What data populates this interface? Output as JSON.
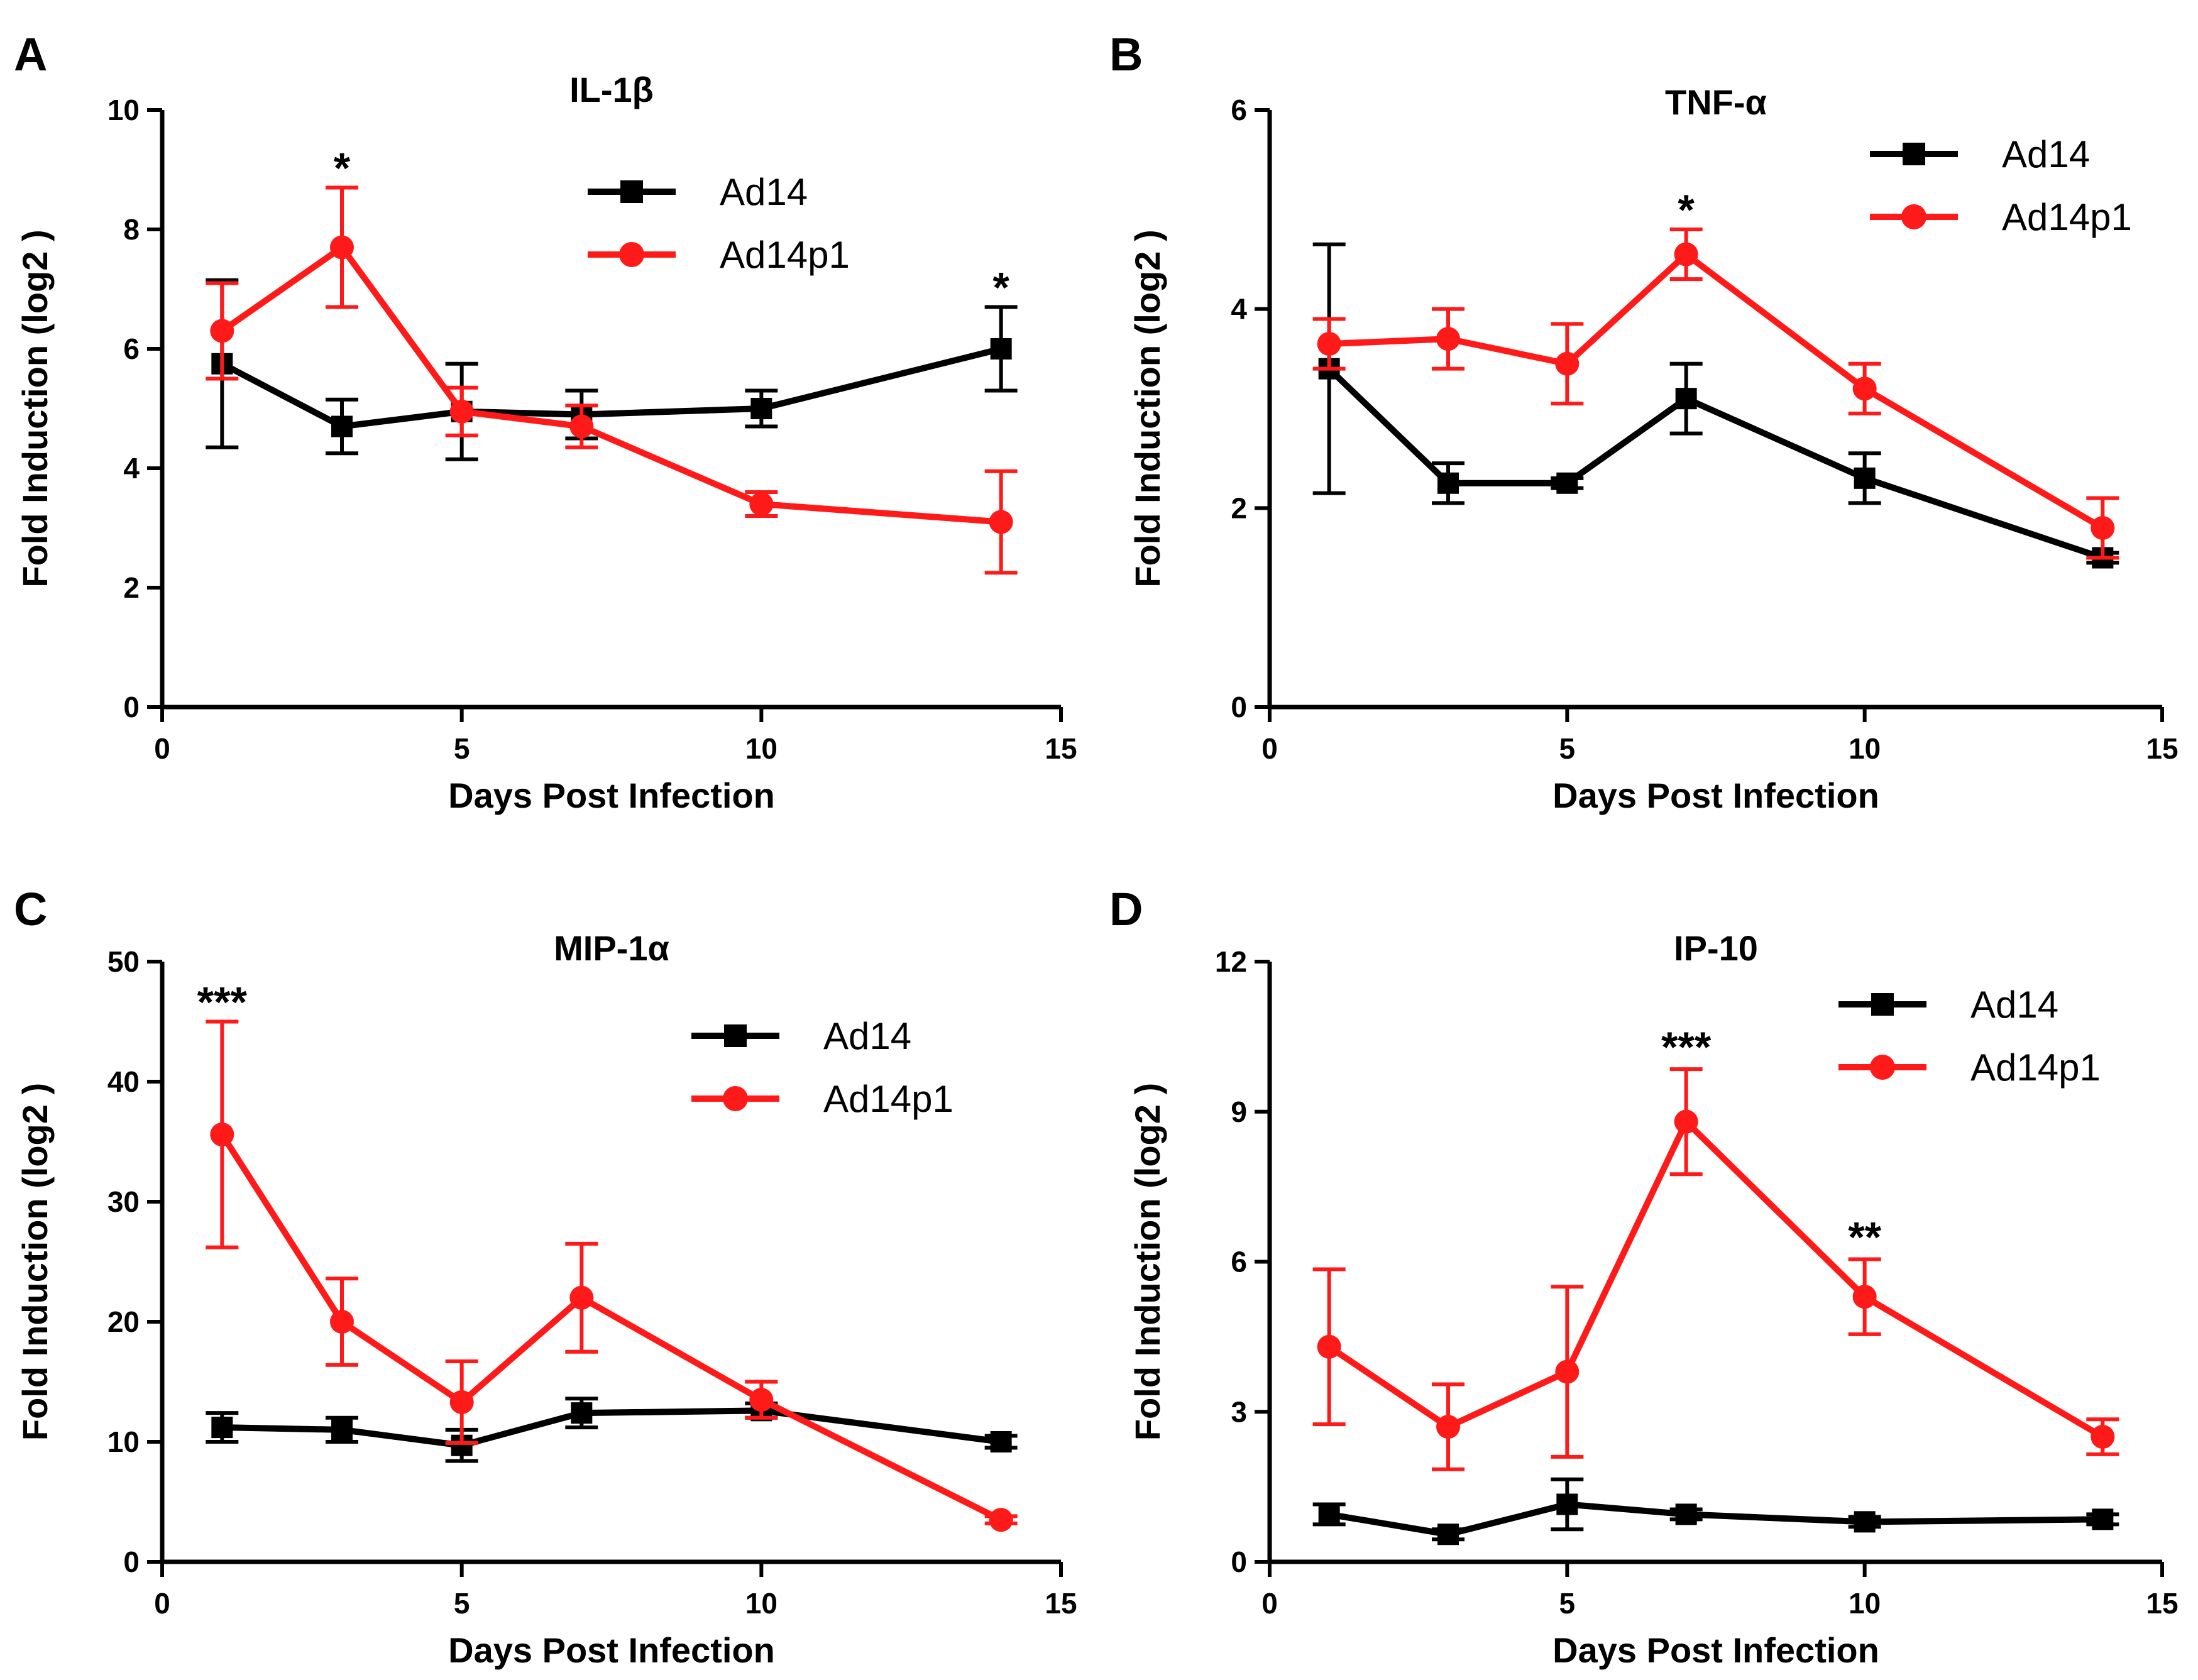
{
  "colors": {
    "Ad14": "#000000",
    "Ad14p1": "#ff1a1a"
  },
  "chart_data": [
    {
      "panel": "A",
      "type": "line",
      "title": "IL-1β",
      "xlabel": "Days Post Infection",
      "ylabel": "Fold Induction (log2 )",
      "xlim": [
        0,
        15
      ],
      "ylim": [
        0,
        10
      ],
      "xticks": [
        0,
        5,
        10,
        15
      ],
      "yticks": [
        0,
        2,
        4,
        6,
        8,
        10
      ],
      "legend_position": "top-right",
      "series": [
        {
          "name": "Ad14",
          "marker": "square",
          "x": [
            1,
            3,
            5,
            7,
            10,
            14
          ],
          "values": [
            5.75,
            4.7,
            4.95,
            4.9,
            5.0,
            6.0
          ],
          "err": [
            1.4,
            0.45,
            0.8,
            0.4,
            0.3,
            0.7
          ]
        },
        {
          "name": "Ad14p1",
          "marker": "circle",
          "x": [
            1,
            3,
            5,
            7,
            10,
            14
          ],
          "values": [
            6.3,
            7.7,
            4.95,
            4.7,
            3.4,
            3.1
          ],
          "err": [
            0.8,
            1.0,
            0.4,
            0.35,
            0.2,
            0.85
          ]
        }
      ],
      "annotations": [
        {
          "x": 3,
          "y": 8.7,
          "text": "*"
        },
        {
          "x": 14,
          "y": 6.7,
          "text": "*"
        }
      ]
    },
    {
      "panel": "B",
      "type": "line",
      "title": "TNF-α",
      "xlabel": "Days Post Infection",
      "ylabel": "Fold Induction (log2 )",
      "xlim": [
        0,
        15
      ],
      "ylim": [
        0,
        6
      ],
      "xticks": [
        0,
        5,
        10,
        15
      ],
      "yticks": [
        0,
        2,
        4,
        6
      ],
      "legend_position": "top-right",
      "series": [
        {
          "name": "Ad14",
          "marker": "square",
          "x": [
            1,
            3,
            5,
            7,
            10,
            14
          ],
          "values": [
            3.4,
            2.25,
            2.25,
            3.1,
            2.3,
            1.5
          ],
          "err": [
            1.25,
            0.2,
            0.05,
            0.35,
            0.25,
            0.05
          ]
        },
        {
          "name": "Ad14p1",
          "marker": "circle",
          "x": [
            1,
            3,
            5,
            7,
            10,
            14
          ],
          "values": [
            3.65,
            3.7,
            3.45,
            4.55,
            3.2,
            1.8
          ],
          "err": [
            0.25,
            0.3,
            0.4,
            0.25,
            0.25,
            0.3
          ]
        }
      ],
      "annotations": [
        {
          "x": 7,
          "y": 4.8,
          "text": "*"
        }
      ]
    },
    {
      "panel": "C",
      "type": "line",
      "title": "MIP-1α",
      "xlabel": "Days Post Infection",
      "ylabel": "Fold Induction (log2 )",
      "xlim": [
        0,
        15
      ],
      "ylim": [
        0,
        50
      ],
      "xticks": [
        0,
        5,
        10,
        15
      ],
      "yticks": [
        0,
        10,
        20,
        30,
        40,
        50
      ],
      "legend_position": "top-right",
      "series": [
        {
          "name": "Ad14",
          "marker": "square",
          "x": [
            1,
            3,
            5,
            7,
            10,
            14
          ],
          "values": [
            11.2,
            11.0,
            9.7,
            12.4,
            12.6,
            10.0
          ],
          "err": [
            1.2,
            1.0,
            1.3,
            1.2,
            0.6,
            0.5
          ]
        },
        {
          "name": "Ad14p1",
          "marker": "circle",
          "x": [
            1,
            3,
            5,
            7,
            10,
            14
          ],
          "values": [
            35.6,
            20.0,
            13.3,
            22.0,
            13.5,
            3.5
          ],
          "err": [
            9.4,
            3.6,
            3.4,
            4.5,
            1.5,
            0.3
          ]
        }
      ],
      "annotations": [
        {
          "x": 1,
          "y": 45,
          "text": "***"
        }
      ]
    },
    {
      "panel": "D",
      "type": "line",
      "title": "IP-10",
      "xlabel": "Days Post Infection",
      "ylabel": "Fold Induction (log2 )",
      "xlim": [
        0,
        15
      ],
      "ylim": [
        0,
        12
      ],
      "xticks": [
        0,
        5,
        10,
        15
      ],
      "yticks": [
        0,
        3,
        6,
        9,
        12
      ],
      "legend_position": "top-right",
      "series": [
        {
          "name": "Ad14",
          "marker": "square",
          "x": [
            1,
            3,
            5,
            7,
            10,
            14
          ],
          "values": [
            0.95,
            0.55,
            1.15,
            0.95,
            0.8,
            0.85
          ],
          "err": [
            0.2,
            0.1,
            0.5,
            0.1,
            0.1,
            0.1
          ]
        },
        {
          "name": "Ad14p1",
          "marker": "circle",
          "x": [
            1,
            3,
            5,
            7,
            10,
            14
          ],
          "values": [
            4.3,
            2.7,
            3.8,
            8.8,
            5.3,
            2.5
          ],
          "err": [
            1.55,
            0.85,
            1.7,
            1.05,
            0.75,
            0.35
          ]
        }
      ],
      "annotations": [
        {
          "x": 7,
          "y": 9.9,
          "text": "***"
        },
        {
          "x": 10,
          "y": 6.1,
          "text": "**"
        }
      ]
    }
  ]
}
